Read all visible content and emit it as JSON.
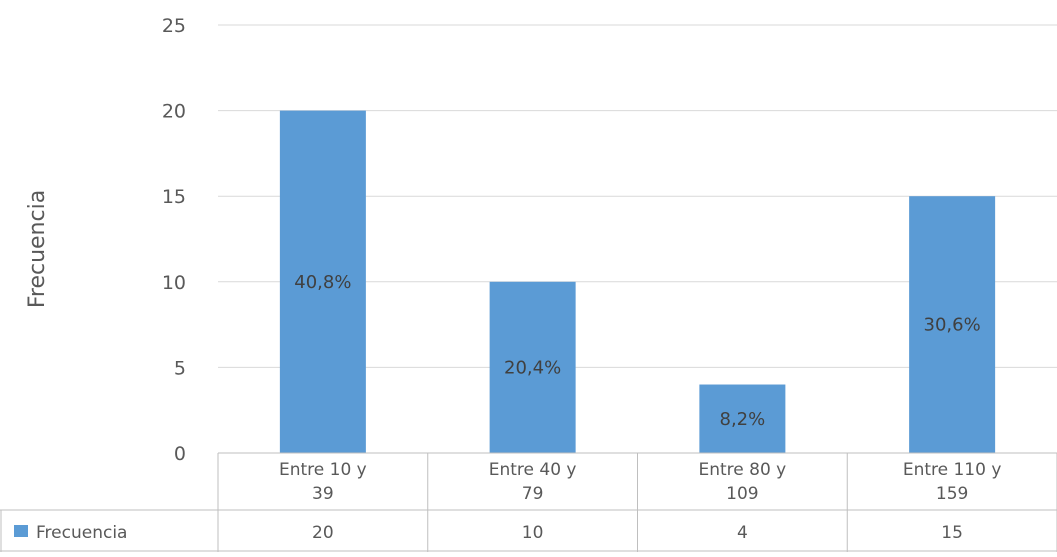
{
  "chart_data": {
    "type": "bar",
    "title": "",
    "ylabel": "Frecuencia",
    "xlabel": "",
    "ylim": [
      0,
      25
    ],
    "yticks": [
      0,
      5,
      10,
      15,
      20,
      25
    ],
    "grid": true,
    "categories": [
      [
        "Entre 10 y",
        "39"
      ],
      [
        "Entre 40 y",
        "79"
      ],
      [
        "Entre 80 y",
        "109"
      ],
      [
        "Entre 110 y",
        "159"
      ]
    ],
    "series": [
      {
        "name": "Frecuencia",
        "values": [
          20,
          10,
          4,
          15
        ],
        "data_labels": [
          "40,8%",
          "20,4%",
          "8,2%",
          "30,6%"
        ],
        "color": "#5b9bd5"
      }
    ],
    "data_table": {
      "legend_key": "Frecuencia",
      "values": [
        "20",
        "10",
        "4",
        "15"
      ]
    }
  }
}
